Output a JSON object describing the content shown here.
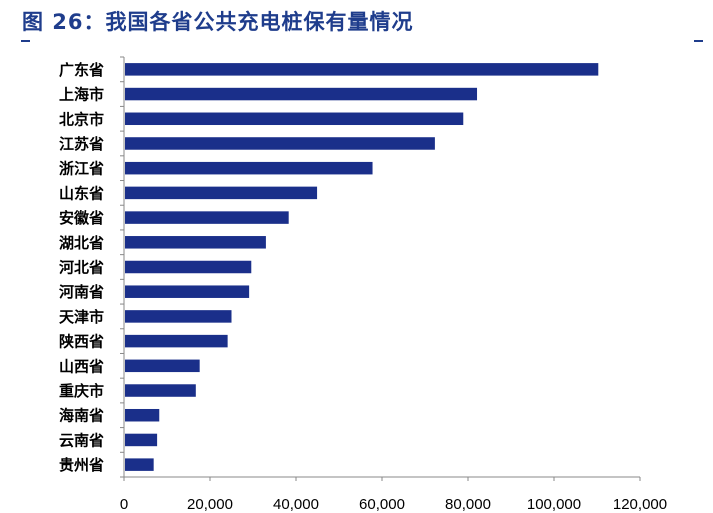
{
  "figure_title": "图 26：我国各省公共充电桩保有量情况",
  "colors": {
    "bar": "#1a2f8a",
    "title": "#1f3d8c",
    "axis": "#888888"
  },
  "chart_data": {
    "type": "bar",
    "orientation": "horizontal",
    "title": "",
    "xlabel": "",
    "ylabel": "",
    "xlim": [
      0,
      120000
    ],
    "x_ticks": [
      0,
      20000,
      40000,
      60000,
      80000,
      100000,
      120000
    ],
    "x_tick_labels": [
      "0",
      "20,000",
      "40,000",
      "60,000",
      "80,000",
      "100,000",
      "120,000"
    ],
    "categories": [
      "广东省",
      "上海市",
      "北京市",
      "江苏省",
      "浙江省",
      "山东省",
      "安徽省",
      "湖北省",
      "河北省",
      "河南省",
      "天津市",
      "陕西省",
      "山西省",
      "重庆市",
      "海南省",
      "云南省",
      "贵州省"
    ],
    "values": [
      110300,
      82100,
      78900,
      72300,
      57800,
      44900,
      38300,
      33000,
      29600,
      29100,
      25000,
      24100,
      17600,
      16700,
      8200,
      7700,
      6900
    ],
    "grid": false,
    "legend": "none"
  }
}
